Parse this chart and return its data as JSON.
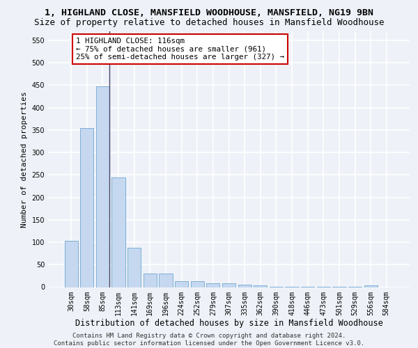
{
  "title_line1": "1, HIGHLAND CLOSE, MANSFIELD WOODHOUSE, MANSFIELD, NG19 9BN",
  "title_line2": "Size of property relative to detached houses in Mansfield Woodhouse",
  "xlabel": "Distribution of detached houses by size in Mansfield Woodhouse",
  "ylabel": "Number of detached properties",
  "footer_line1": "Contains HM Land Registry data © Crown copyright and database right 2024.",
  "footer_line2": "Contains public sector information licensed under the Open Government Licence v3.0.",
  "annotation_line1": "1 HIGHLAND CLOSE: 116sqm",
  "annotation_line2": "← 75% of detached houses are smaller (961)",
  "annotation_line3": "25% of semi-detached houses are larger (327) →",
  "bar_labels": [
    "30sqm",
    "58sqm",
    "85sqm",
    "113sqm",
    "141sqm",
    "169sqm",
    "196sqm",
    "224sqm",
    "252sqm",
    "279sqm",
    "307sqm",
    "335sqm",
    "362sqm",
    "390sqm",
    "418sqm",
    "446sqm",
    "473sqm",
    "501sqm",
    "529sqm",
    "556sqm",
    "584sqm"
  ],
  "bar_values": [
    103,
    354,
    447,
    245,
    88,
    31,
    31,
    13,
    13,
    8,
    8,
    5,
    4,
    1,
    1,
    1,
    1,
    1,
    1,
    4,
    0
  ],
  "bar_color": "#c5d8f0",
  "bar_edge_color": "#7fafd4",
  "highlight_bar_index": 2,
  "highlight_line_color": "#444466",
  "ylim": [
    0,
    570
  ],
  "yticks": [
    0,
    50,
    100,
    150,
    200,
    250,
    300,
    350,
    400,
    450,
    500,
    550
  ],
  "bg_color": "#eef2f8",
  "grid_color": "#ffffff",
  "annotation_box_color": "white",
  "annotation_box_edge": "#cc0000",
  "title_fontsize": 9.5,
  "subtitle_fontsize": 9,
  "ylabel_fontsize": 8,
  "xlabel_fontsize": 8.5,
  "tick_fontsize": 7,
  "annotation_fontsize": 7.8,
  "footer_fontsize": 6.5
}
